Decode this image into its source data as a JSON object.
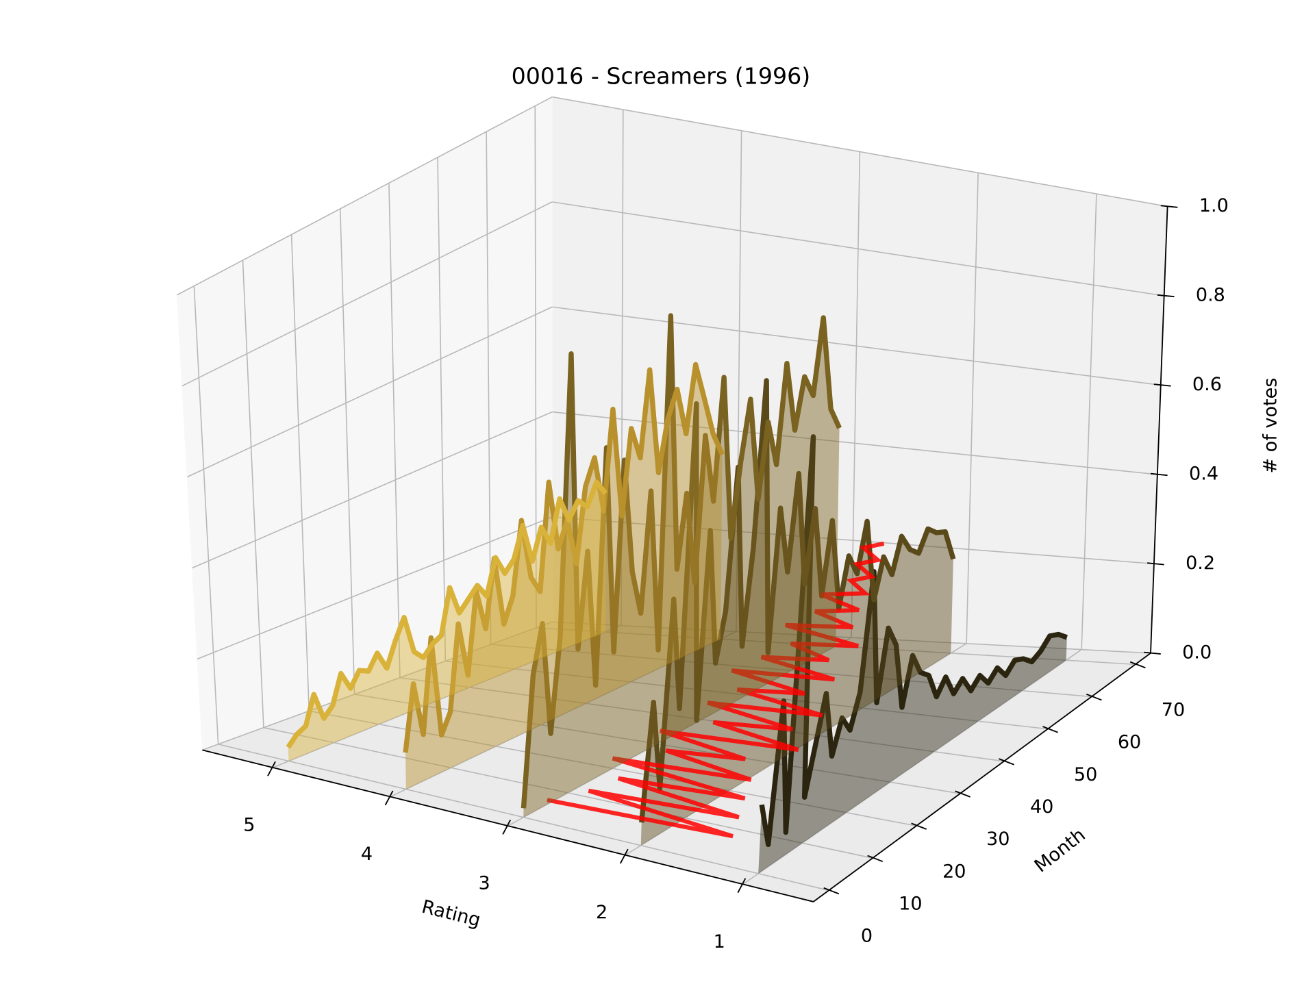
{
  "chart_data": {
    "type": "line3d",
    "title": "00016 - Screamers (1996)",
    "xlabel": "Rating",
    "ylabel": "Month",
    "zlabel": "# of votes",
    "xlim": [
      5.6,
      0.4
    ],
    "ylim": [
      -3.5,
      73.5
    ],
    "zlim": [
      0,
      1
    ],
    "xticks": [
      5,
      4,
      3,
      2,
      1
    ],
    "yticks": [
      0,
      10,
      20,
      30,
      40,
      50,
      60,
      70
    ],
    "zticks": [
      {
        "value": 0,
        "label": "0.0"
      },
      0.2,
      0.4,
      0.6,
      0.8,
      {
        "value": 1,
        "label": "1.0"
      }
    ],
    "grid": true,
    "x": [
      0,
      2,
      4,
      6,
      8,
      10,
      12,
      14,
      16,
      18,
      20,
      22,
      24,
      26,
      28,
      30,
      32,
      34,
      36,
      38,
      40,
      42,
      44,
      46,
      48,
      50,
      52,
      54,
      56,
      58,
      60,
      62,
      64,
      66,
      68,
      70
    ],
    "series": [
      {
        "rating": 5,
        "color": "#d9b23a",
        "values": [
          0.03,
          0.05,
          0.06,
          0.12,
          0.06,
          0.08,
          0.14,
          0.1,
          0.13,
          0.12,
          0.15,
          0.11,
          0.16,
          0.2,
          0.12,
          0.1,
          0.12,
          0.13,
          0.22,
          0.16,
          0.18,
          0.2,
          0.17,
          0.24,
          0.2,
          0.22,
          0.28,
          0.2,
          0.26,
          0.22,
          0.3,
          0.25,
          0.28,
          0.26,
          0.3,
          0.27
        ]
      },
      {
        "rating": 4,
        "color": "#b8912c",
        "values": [
          0.08,
          0.22,
          0.1,
          0.3,
          0.08,
          0.12,
          0.3,
          0.18,
          0.35,
          0.26,
          0.4,
          0.25,
          0.3,
          0.45,
          0.32,
          0.28,
          0.5,
          0.35,
          0.4,
          0.3,
          0.45,
          0.5,
          0.38,
          0.58,
          0.35,
          0.52,
          0.45,
          0.62,
          0.4,
          0.5,
          0.55,
          0.45,
          0.58,
          0.5,
          0.42,
          0.37
        ]
      },
      {
        "rating": 3,
        "color": "#7a6220",
        "values": [
          0.02,
          0.3,
          0.4,
          0.15,
          0.35,
          0.95,
          0.3,
          0.5,
          0.2,
          0.7,
          0.25,
          0.65,
          0.4,
          0.3,
          0.55,
          0.2,
          0.9,
          0.35,
          0.5,
          0.3,
          0.6,
          0.45,
          0.7,
          0.35,
          0.5,
          0.62,
          0.4,
          0.55,
          0.45,
          0.65,
          0.5,
          0.6,
          0.55,
          0.7,
          0.5,
          0.45
        ]
      },
      {
        "rating": 2,
        "color": "#5a4a1a",
        "values": [
          0.05,
          0.3,
          0.1,
          0.5,
          0.25,
          0.9,
          0.2,
          0.6,
          0.3,
          0.4,
          0.7,
          0.3,
          0.5,
          0.85,
          0.25,
          0.55,
          0.4,
          0.6,
          0.35,
          0.5,
          0.3,
          0.45,
          0.25,
          0.35,
          0.3,
          0.4,
          0.22,
          0.3,
          0.25,
          0.32,
          0.28,
          0.26,
          0.3,
          0.28,
          0.27,
          0.2
        ]
      },
      {
        "rating": 1,
        "color": "#2b2510",
        "values": [
          0.15,
          0.05,
          0.35,
          0.05,
          0.9,
          0.1,
          0.2,
          0.3,
          0.15,
          0.22,
          0.18,
          0.25,
          0.5,
          0.2,
          0.35,
          0.3,
          0.15,
          0.25,
          0.2,
          0.18,
          0.12,
          0.15,
          0.1,
          0.12,
          0.08,
          0.1,
          0.07,
          0.09,
          0.06,
          0.08,
          0.07,
          0.05,
          0.06,
          0.08,
          0.07,
          0.05
        ]
      }
    ],
    "trace": {
      "color": "#ff0000",
      "values": [
        2.8,
        1.3,
        2.6,
        1.4,
        2.5,
        1.5,
        2.7,
        1.6,
        2.4,
        1.8,
        2.6,
        1.5,
        2.3,
        1.7,
        2.5,
        1.6,
        2.4,
        1.9,
        2.6,
        1.8,
        2.5,
        2.0,
        2.4,
        1.9,
        2.6,
        2.1,
        2.5,
        2.2,
        2.6,
        2.3,
        2.5,
        2.4,
        2.6,
        2.5,
        2.7,
        2.6
      ],
      "z": [
        0.05,
        0.05,
        0.06,
        0.06,
        0.07,
        0.07,
        0.08,
        0.08,
        0.09,
        0.09,
        0.1,
        0.1,
        0.11,
        0.11,
        0.12,
        0.12,
        0.13,
        0.13,
        0.14,
        0.14,
        0.15,
        0.15,
        0.16,
        0.16,
        0.17,
        0.17,
        0.18,
        0.18,
        0.19,
        0.19,
        0.2,
        0.2,
        0.21,
        0.21,
        0.22,
        0.22
      ]
    }
  }
}
